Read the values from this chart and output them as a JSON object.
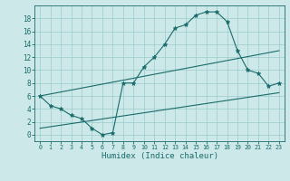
{
  "background_color": "#cce8e8",
  "grid_color": "#99cccc",
  "line_color": "#1a6b6b",
  "xlabel": "Humidex (Indice chaleur)",
  "xlim": [
    -0.5,
    23.5
  ],
  "ylim": [
    -1,
    20
  ],
  "yticks": [
    0,
    2,
    4,
    6,
    8,
    10,
    12,
    14,
    16,
    18
  ],
  "xticks": [
    0,
    1,
    2,
    3,
    4,
    5,
    6,
    7,
    8,
    9,
    10,
    11,
    12,
    13,
    14,
    15,
    16,
    17,
    18,
    19,
    20,
    21,
    22,
    23
  ],
  "line1_x": [
    0,
    1,
    2,
    3,
    4,
    5,
    6,
    7,
    8,
    9,
    10,
    11,
    12,
    13,
    14,
    15,
    16,
    17,
    18,
    19,
    20,
    21,
    22,
    23
  ],
  "line1_y": [
    6,
    4.5,
    4,
    3,
    2.5,
    1,
    0,
    0.3,
    8,
    8,
    10.5,
    12,
    14,
    16.5,
    17,
    18.5,
    19,
    19,
    17.5,
    13,
    10,
    9.5,
    7.5,
    8
  ],
  "line2_x": [
    0,
    23
  ],
  "line2_y": [
    6,
    13
  ],
  "line3_x": [
    0,
    23
  ],
  "line3_y": [
    1,
    6.5
  ],
  "figwidth": 3.2,
  "figheight": 2.0,
  "dpi": 100
}
